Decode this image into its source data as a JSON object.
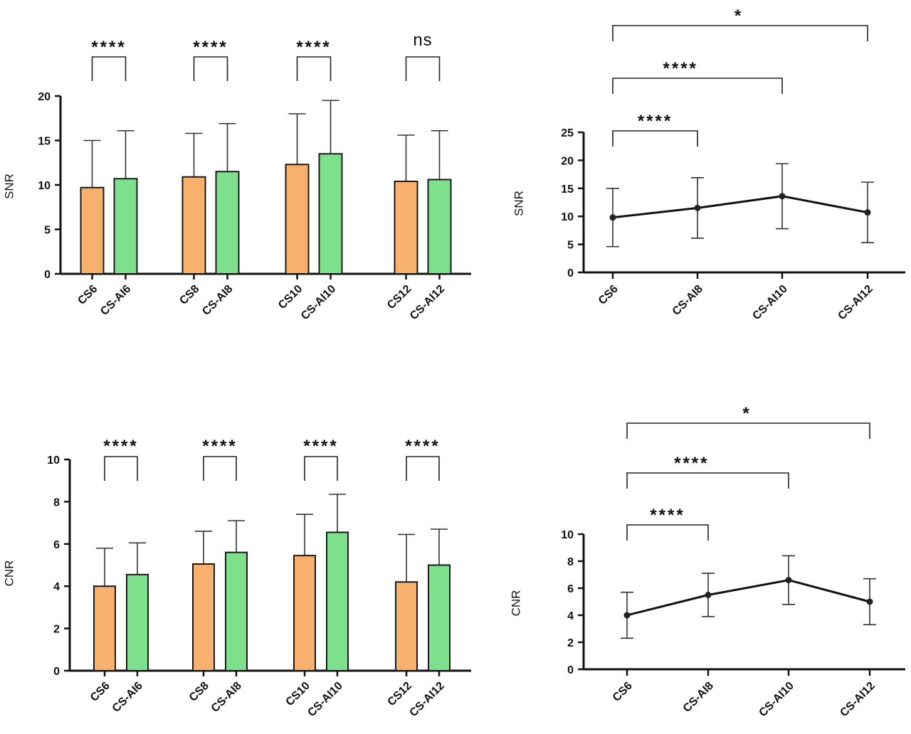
{
  "colors": {
    "orange": "#f7b06e",
    "green": "#7ee08c",
    "ink": "#111111"
  },
  "chart_data": [
    {
      "id": "snr-bar",
      "type": "bar",
      "ylabel": "SNR",
      "ylim": [
        0,
        20
      ],
      "yticks": [
        0,
        5,
        10,
        15,
        20
      ],
      "groups": [
        {
          "bars": [
            {
              "label": "CS6",
              "value": 9.7,
              "error": 5.3,
              "color": "orange"
            },
            {
              "label": "CS-AI6",
              "value": 10.7,
              "error": 5.4,
              "color": "green"
            }
          ],
          "significance": "****"
        },
        {
          "bars": [
            {
              "label": "CS8",
              "value": 10.9,
              "error": 4.9,
              "color": "orange"
            },
            {
              "label": "CS-AI8",
              "value": 11.5,
              "error": 5.4,
              "color": "green"
            }
          ],
          "significance": "****"
        },
        {
          "bars": [
            {
              "label": "CS10",
              "value": 12.3,
              "error": 5.7,
              "color": "orange"
            },
            {
              "label": "CS-AI10",
              "value": 13.5,
              "error": 6.0,
              "color": "green"
            }
          ],
          "significance": "****"
        },
        {
          "bars": [
            {
              "label": "CS12",
              "value": 10.4,
              "error": 5.2,
              "color": "orange"
            },
            {
              "label": "CS-AI12",
              "value": 10.6,
              "error": 5.5,
              "color": "green"
            }
          ],
          "significance": "ns"
        }
      ]
    },
    {
      "id": "snr-line",
      "type": "line",
      "ylabel": "SNR",
      "ylim": [
        0,
        25
      ],
      "yticks": [
        0,
        5,
        10,
        15,
        20,
        25
      ],
      "categories": [
        "CS6",
        "CS-AI8",
        "CS-AI10",
        "CS-AI12"
      ],
      "values": [
        9.8,
        11.5,
        13.6,
        10.7
      ],
      "errors": [
        5.2,
        5.4,
        5.8,
        5.4
      ],
      "comparisons": [
        {
          "from": "CS6",
          "to": "CS-AI8",
          "label": "****"
        },
        {
          "from": "CS6",
          "to": "CS-AI10",
          "label": "****"
        },
        {
          "from": "CS6",
          "to": "CS-AI12",
          "label": "*"
        }
      ]
    },
    {
      "id": "cnr-bar",
      "type": "bar",
      "ylabel": "CNR",
      "ylim": [
        0,
        10
      ],
      "yticks": [
        0,
        2,
        4,
        6,
        8,
        10
      ],
      "groups": [
        {
          "bars": [
            {
              "label": "CS6",
              "value": 4.0,
              "error": 1.8,
              "color": "orange"
            },
            {
              "label": "CS-AI6",
              "value": 4.55,
              "error": 1.5,
              "color": "green"
            }
          ],
          "significance": "****"
        },
        {
          "bars": [
            {
              "label": "CS8",
              "value": 5.05,
              "error": 1.55,
              "color": "orange"
            },
            {
              "label": "CS-AI8",
              "value": 5.6,
              "error": 1.5,
              "color": "green"
            }
          ],
          "significance": "****"
        },
        {
          "bars": [
            {
              "label": "CS10",
              "value": 5.45,
              "error": 1.95,
              "color": "orange"
            },
            {
              "label": "CS-AI10",
              "value": 6.55,
              "error": 1.8,
              "color": "green"
            }
          ],
          "significance": "****"
        },
        {
          "bars": [
            {
              "label": "CS12",
              "value": 4.2,
              "error": 2.25,
              "color": "orange"
            },
            {
              "label": "CS-AI12",
              "value": 5.0,
              "error": 1.7,
              "color": "green"
            }
          ],
          "significance": "****"
        }
      ]
    },
    {
      "id": "cnr-line",
      "type": "line",
      "ylabel": "CNR",
      "ylim": [
        0,
        10
      ],
      "yticks": [
        0,
        2,
        4,
        6,
        8,
        10
      ],
      "categories": [
        "CS6",
        "CS-AI8",
        "CS-AI10",
        "CS-AI12"
      ],
      "values": [
        4.0,
        5.5,
        6.6,
        5.0
      ],
      "errors": [
        1.7,
        1.6,
        1.8,
        1.7
      ],
      "comparisons": [
        {
          "from": "CS6",
          "to": "CS-AI8",
          "label": "****"
        },
        {
          "from": "CS6",
          "to": "CS-AI10",
          "label": "****"
        },
        {
          "from": "CS6",
          "to": "CS-AI12",
          "label": "*"
        }
      ]
    }
  ]
}
